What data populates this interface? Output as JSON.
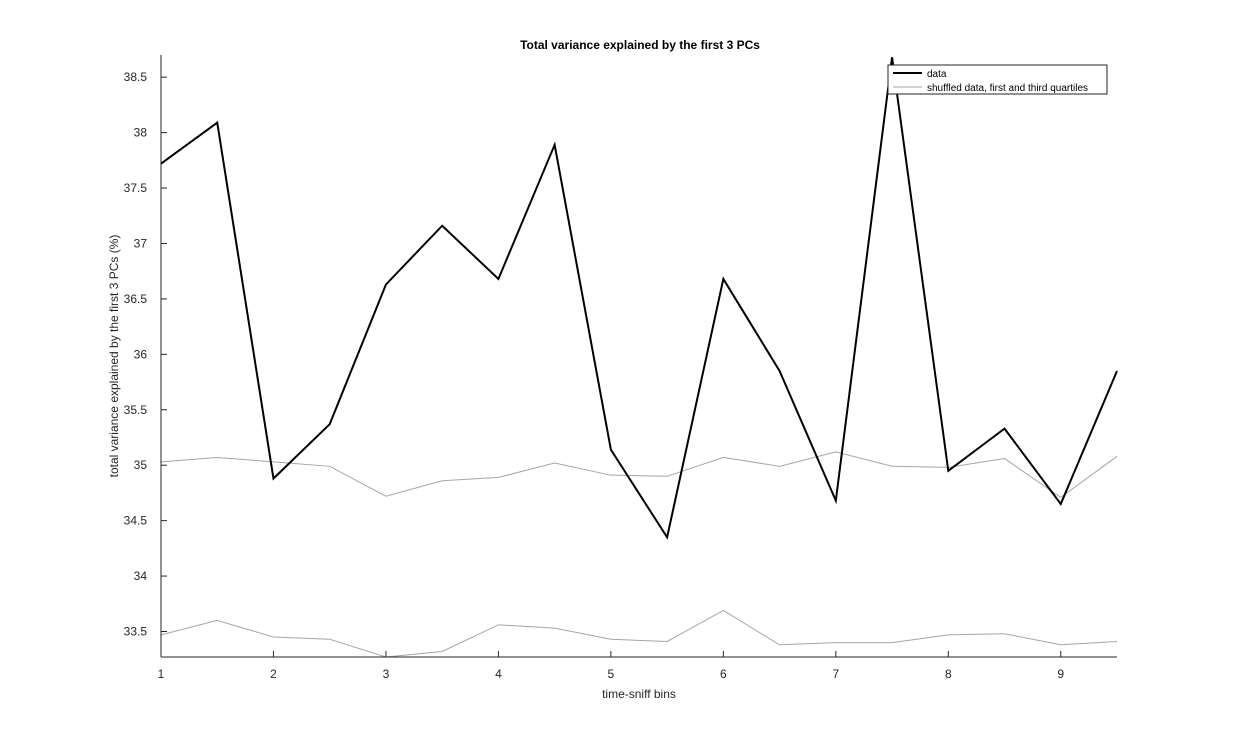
{
  "chart_data": {
    "type": "line",
    "title": "Total variance explained by the first 3 PCs",
    "xlabel": "time-sniff bins",
    "ylabel": "total variance explained by the first 3 PCs (%)",
    "xlim": [
      1,
      9.5
    ],
    "ylim": [
      33.27,
      38.7
    ],
    "xticks": [
      1,
      2,
      3,
      4,
      5,
      6,
      7,
      8,
      9
    ],
    "xtick_labels": [
      "1",
      "2",
      "3",
      "4",
      "5",
      "6",
      "7",
      "8",
      "9"
    ],
    "yticks": [
      33.5,
      34,
      34.5,
      35,
      35.5,
      36,
      36.5,
      37,
      37.5,
      38,
      38.5
    ],
    "ytick_labels": [
      "33.5",
      "34",
      "34.5",
      "35",
      "35.5",
      "36",
      "36.5",
      "37",
      "37.5",
      "38",
      "38.5"
    ],
    "grid": false,
    "legend_position": "top-right",
    "x": [
      1,
      1.5,
      2,
      2.5,
      3,
      3.5,
      4,
      4.5,
      5,
      5.5,
      6,
      6.5,
      7,
      7.5,
      8,
      8.5,
      9,
      9.5
    ],
    "series": [
      {
        "name": "data",
        "color": "#000000",
        "values": [
          37.72,
          38.09,
          34.88,
          35.37,
          36.63,
          37.16,
          36.68,
          37.89,
          35.14,
          34.35,
          36.68,
          35.85,
          34.68,
          38.68,
          34.95,
          35.33,
          34.65,
          35.85
        ]
      },
      {
        "name": "shuffled data, first and third quartiles",
        "color": "#a6a6a6",
        "values": [
          35.03,
          35.07,
          35.03,
          34.99,
          34.72,
          34.86,
          34.89,
          35.02,
          34.91,
          34.9,
          35.07,
          34.99,
          35.12,
          34.99,
          34.98,
          35.06,
          34.71,
          35.08
        ]
      },
      {
        "color": "#a6a6a6",
        "values": [
          33.47,
          33.6,
          33.45,
          33.43,
          33.27,
          33.32,
          33.56,
          33.53,
          33.43,
          33.41,
          33.69,
          33.38,
          33.4,
          33.4,
          33.47,
          33.48,
          33.38,
          33.41
        ]
      }
    ]
  }
}
